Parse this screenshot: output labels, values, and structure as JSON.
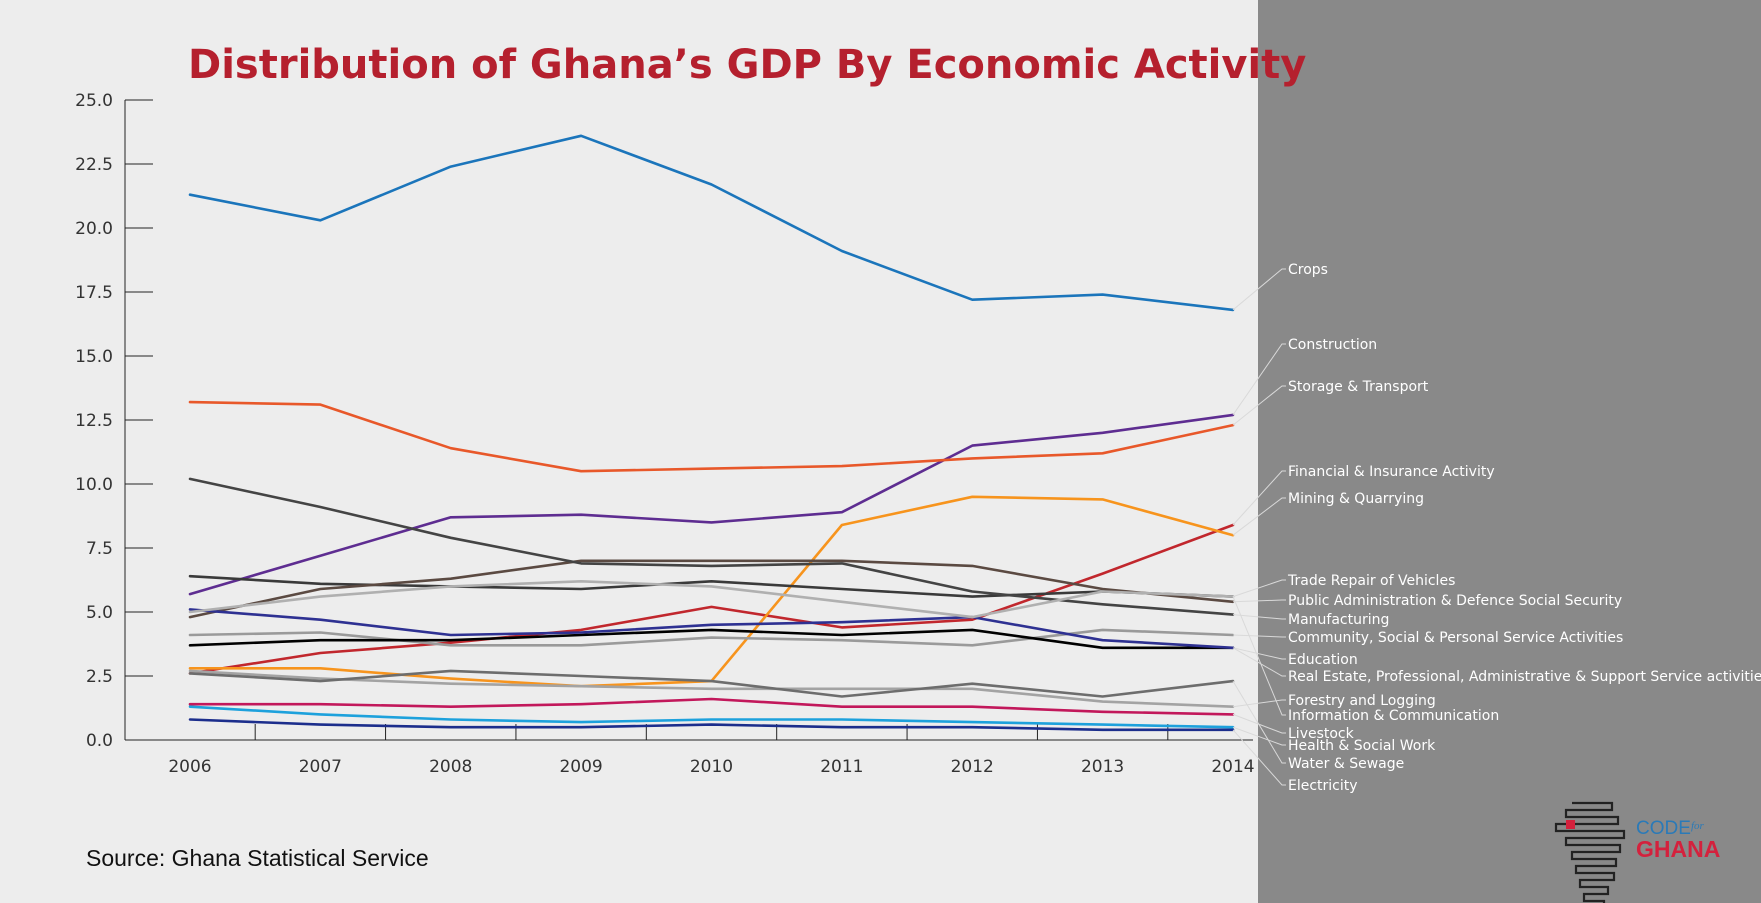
{
  "source": "Source: Ghana Statistical Service",
  "logo": {
    "code": "CODE",
    "for": "for",
    "ghana": "GHANA"
  },
  "chart_data": {
    "type": "line",
    "title": "Distribution of Ghana’s GDP By Economic Activity",
    "xlabel": "",
    "ylabel": "",
    "x": [
      2006,
      2007,
      2008,
      2009,
      2010,
      2011,
      2012,
      2013,
      2014
    ],
    "ylim": [
      0,
      25
    ],
    "yticks": [
      "0.0",
      "2.5",
      "5.0",
      "7.5",
      "10.0",
      "12.5",
      "15.0",
      "17.5",
      "20.0",
      "22.5",
      "25.0"
    ],
    "xticks": [
      "2006",
      "2007",
      "2008",
      "2009",
      "2010",
      "2011",
      "2012",
      "2013",
      "2014"
    ],
    "grid": false,
    "legend_placement": "right",
    "series": [
      {
        "name": "Crops",
        "color": "#1b75bb",
        "values": [
          21.3,
          20.3,
          22.4,
          23.6,
          21.7,
          19.1,
          17.2,
          17.4,
          16.8
        ]
      },
      {
        "name": "Construction",
        "color": "#5e2d91",
        "values": [
          5.7,
          7.2,
          8.7,
          8.8,
          8.5,
          8.9,
          11.5,
          12.0,
          12.7
        ]
      },
      {
        "name": "Storage & Transport",
        "color": "#e8582a",
        "values": [
          13.2,
          13.1,
          11.4,
          10.5,
          10.6,
          10.7,
          11.0,
          11.2,
          12.3
        ]
      },
      {
        "name": "Financial & Insurance Activity",
        "color": "#c1272d",
        "values": [
          2.6,
          3.4,
          3.8,
          4.3,
          5.2,
          4.4,
          4.7,
          6.5,
          8.4
        ]
      },
      {
        "name": "Mining & Quarrying",
        "color": "#f7941d",
        "values": [
          2.8,
          2.8,
          2.4,
          2.1,
          2.3,
          8.4,
          9.5,
          9.4,
          8.0
        ]
      },
      {
        "name": "Trade Repair of Vehicles",
        "color": "#3a3a3a",
        "values": [
          6.4,
          6.1,
          6.0,
          5.9,
          6.2,
          5.9,
          5.6,
          5.8,
          5.6
        ]
      },
      {
        "name": "Public Administration & Defence Social Security",
        "color": "#5b4a42",
        "values": [
          4.8,
          5.9,
          6.3,
          7.0,
          7.0,
          7.0,
          6.8,
          5.9,
          5.4
        ]
      },
      {
        "name": "Manufacturing",
        "color": "#444444",
        "values": [
          10.2,
          9.1,
          7.9,
          6.9,
          6.8,
          6.9,
          5.8,
          5.3,
          4.9
        ]
      },
      {
        "name": "Community, Social & Personal Service Activities",
        "color": "#9a9a9a",
        "values": [
          4.1,
          4.2,
          3.7,
          3.7,
          4.0,
          3.9,
          3.7,
          4.3,
          4.1
        ]
      },
      {
        "name": "Education",
        "color": "#000000",
        "values": [
          3.7,
          3.9,
          3.9,
          4.1,
          4.3,
          4.1,
          4.3,
          3.6,
          3.6
        ]
      },
      {
        "name": "Real Estate, Professional, Administrative & Support Service activities",
        "color": "#2e3192",
        "values": [
          5.1,
          4.7,
          4.1,
          4.2,
          4.5,
          4.6,
          4.8,
          3.9,
          3.6
        ]
      },
      {
        "name": "Forestry and Logging",
        "color": "#a3a3a3",
        "values": [
          2.7,
          2.4,
          2.2,
          2.1,
          2.0,
          2.0,
          2.0,
          1.5,
          1.3
        ]
      },
      {
        "name": "Information & Communication",
        "color": "#b0b0b0",
        "values": [
          5.0,
          5.6,
          6.0,
          6.2,
          6.0,
          5.4,
          4.8,
          5.8,
          5.6
        ]
      },
      {
        "name": "Livestock",
        "color": "#c2185b",
        "values": [
          1.4,
          1.4,
          1.3,
          1.4,
          1.6,
          1.3,
          1.3,
          1.1,
          1.0
        ]
      },
      {
        "name": "Health & Social Work",
        "color": "#1da1dc",
        "values": [
          1.3,
          1.0,
          0.8,
          0.7,
          0.8,
          0.8,
          0.7,
          0.6,
          0.5
        ]
      },
      {
        "name": "Water & Sewage",
        "color": "#6d6d6d",
        "values": [
          2.6,
          2.3,
          2.7,
          2.5,
          2.3,
          1.7,
          2.2,
          1.7,
          2.3
        ]
      },
      {
        "name": "Electricity",
        "color": "#1c2e8c",
        "values": [
          0.8,
          0.6,
          0.5,
          0.5,
          0.6,
          0.5,
          0.5,
          0.4,
          0.4
        ]
      }
    ]
  }
}
